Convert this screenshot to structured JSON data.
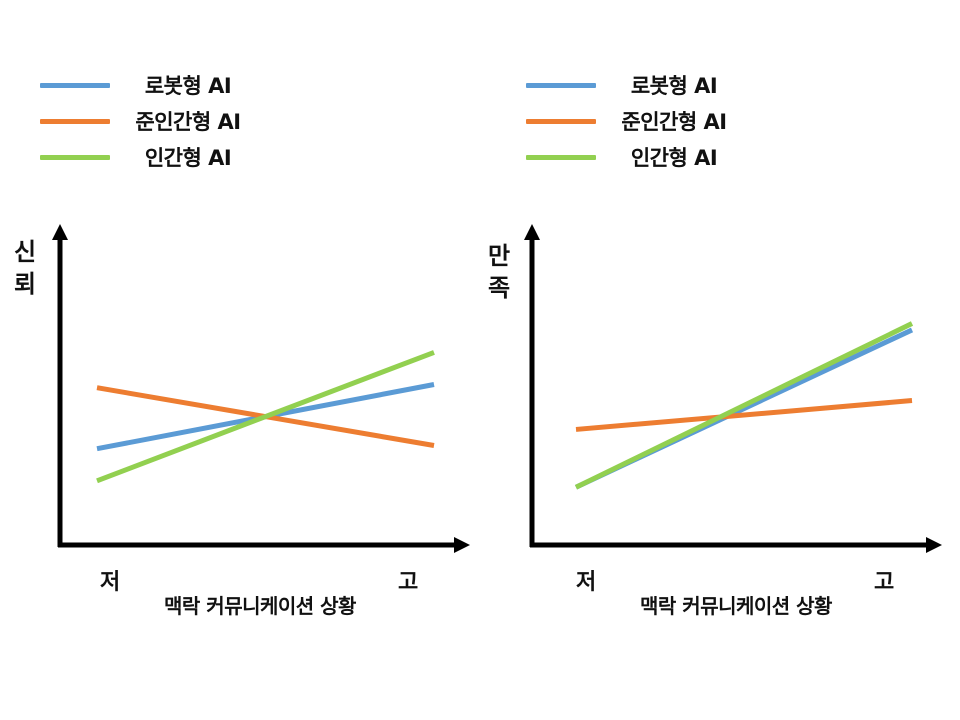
{
  "chart_data": [
    {
      "type": "line",
      "ylabel": "신뢰",
      "xlabel": "맥락 커뮤니케이션 상황",
      "x_ticks": [
        "저",
        "고"
      ],
      "x": [
        "저",
        "고"
      ],
      "ylim": [
        0,
        10
      ],
      "grid": false,
      "legend_position": "top-left",
      "series": [
        {
          "name": "로봇형 AI",
          "color": "#5b9bd5",
          "values": [
            3.0,
            5.0
          ]
        },
        {
          "name": "준인간형 AI",
          "color": "#ed7d31",
          "values": [
            4.9,
            3.1
          ]
        },
        {
          "name": "인간형 AI",
          "color": "#92d050",
          "values": [
            2.0,
            6.0
          ]
        }
      ]
    },
    {
      "type": "line",
      "ylabel": "만족",
      "xlabel": "맥락 커뮤니케이션 상황",
      "x_ticks": [
        "저",
        "고"
      ],
      "x": [
        "저",
        "고"
      ],
      "ylim": [
        0,
        10
      ],
      "grid": false,
      "legend_position": "top-left",
      "series": [
        {
          "name": "로봇형 AI",
          "color": "#5b9bd5",
          "values": [
            1.8,
            6.7
          ]
        },
        {
          "name": "준인간형 AI",
          "color": "#ed7d31",
          "values": [
            3.6,
            4.5
          ]
        },
        {
          "name": "인간형 AI",
          "color": "#92d050",
          "values": [
            1.8,
            6.9
          ]
        }
      ]
    }
  ]
}
